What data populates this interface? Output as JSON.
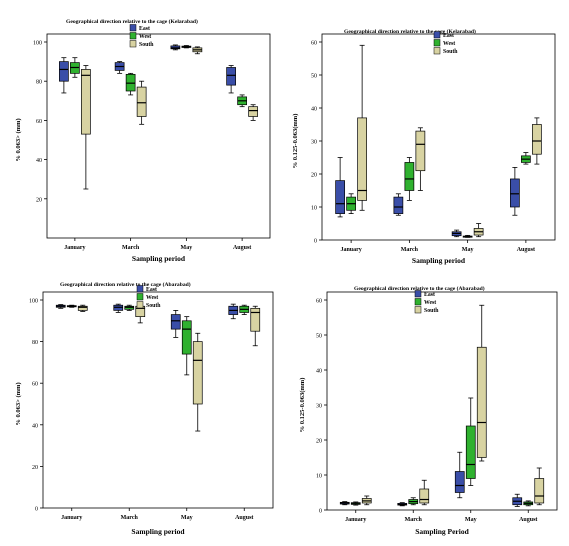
{
  "colors": {
    "East": "#3a4ea8",
    "West": "#2fb12f",
    "South": "#d8d3a2"
  },
  "chart_data": [
    {
      "type": "box",
      "title": "Geographical direction relative to the cage (Kelarabad)",
      "xlabel": "Sampling period",
      "ylabel": "% 0.063> (mm)",
      "categories": [
        "January",
        "March",
        "May",
        "August"
      ],
      "ylim": [
        0,
        100
      ],
      "yticks": [
        20,
        40,
        60,
        80,
        100
      ],
      "legend": [
        "East",
        "West",
        "South"
      ],
      "series": [
        {
          "name": "East",
          "boxes": [
            {
              "whislo": 74,
              "q1": 80,
              "med": 86,
              "q3": 90,
              "whishi": 92
            },
            {
              "whislo": 84,
              "q1": 85.5,
              "med": 87.5,
              "q3": 89.5,
              "whishi": 90
            },
            {
              "whislo": 96,
              "q1": 96.5,
              "med": 97,
              "q3": 98,
              "whishi": 98.5
            },
            {
              "whislo": 74,
              "q1": 78,
              "med": 83,
              "q3": 87,
              "whishi": 88
            }
          ]
        },
        {
          "name": "West",
          "boxes": [
            {
              "whislo": 82,
              "q1": 84,
              "med": 87,
              "q3": 89.5,
              "whishi": 92
            },
            {
              "whislo": 73,
              "q1": 75,
              "med": 79,
              "q3": 83.5,
              "whishi": 84
            },
            {
              "whislo": 97,
              "q1": 97.2,
              "med": 97.5,
              "q3": 97.9,
              "whishi": 98.2
            },
            {
              "whislo": 67,
              "q1": 68,
              "med": 70,
              "q3": 72,
              "whishi": 73
            }
          ]
        },
        {
          "name": "South",
          "boxes": [
            {
              "whislo": 25,
              "q1": 53,
              "med": 83,
              "q3": 86,
              "whishi": 88
            },
            {
              "whislo": 58,
              "q1": 62,
              "med": 69,
              "q3": 77,
              "whishi": 80
            },
            {
              "whislo": 94,
              "q1": 95,
              "med": 96,
              "q3": 97,
              "whishi": 97.5
            },
            {
              "whislo": 60,
              "q1": 62,
              "med": 65,
              "q3": 67,
              "whishi": 68
            }
          ]
        }
      ]
    },
    {
      "type": "box",
      "title": "Geographical direction relative to the cage (Kelarabad)",
      "xlabel": "Sampling period",
      "ylabel": "% 0.125-0.063(mm)",
      "categories": [
        "January",
        "March",
        "May",
        "August"
      ],
      "ylim": [
        0,
        60
      ],
      "yticks": [
        0,
        10,
        20,
        30,
        40,
        50,
        60
      ],
      "legend": [
        "East",
        "West",
        "South"
      ],
      "series": [
        {
          "name": "East",
          "boxes": [
            {
              "whislo": 7,
              "q1": 8,
              "med": 11,
              "q3": 18,
              "whishi": 25
            },
            {
              "whislo": 7.5,
              "q1": 8,
              "med": 10,
              "q3": 13,
              "whishi": 14
            },
            {
              "whislo": 1,
              "q1": 1.3,
              "med": 2,
              "q3": 2.5,
              "whishi": 3
            },
            {
              "whislo": 7.5,
              "q1": 10,
              "med": 14,
              "q3": 18.5,
              "whishi": 22
            }
          ]
        },
        {
          "name": "West",
          "boxes": [
            {
              "whislo": 8,
              "q1": 9,
              "med": 11,
              "q3": 13,
              "whishi": 14
            },
            {
              "whislo": 12,
              "q1": 15,
              "med": 18.5,
              "q3": 23.5,
              "whishi": 25
            },
            {
              "whislo": 0.8,
              "q1": 0.9,
              "med": 1,
              "q3": 1.2,
              "whishi": 1.4
            },
            {
              "whislo": 23,
              "q1": 23.5,
              "med": 24.5,
              "q3": 25.5,
              "whishi": 26.5
            }
          ]
        },
        {
          "name": "South",
          "boxes": [
            {
              "whislo": 9,
              "q1": 12,
              "med": 15,
              "q3": 37,
              "whishi": 59
            },
            {
              "whislo": 15,
              "q1": 21,
              "med": 29,
              "q3": 33,
              "whishi": 34
            },
            {
              "whislo": 1,
              "q1": 1.5,
              "med": 2.5,
              "q3": 3.5,
              "whishi": 5
            },
            {
              "whislo": 23,
              "q1": 26,
              "med": 30,
              "q3": 35,
              "whishi": 37
            }
          ]
        }
      ]
    },
    {
      "type": "box",
      "title": "Geographical direction relative to the cage (Abarabad)",
      "xlabel": "Sampling period",
      "ylabel": "% 0.063> (mm)",
      "categories": [
        "January",
        "March",
        "May",
        "August"
      ],
      "ylim": [
        0,
        100
      ],
      "yticks": [
        0,
        20,
        40,
        60,
        80,
        100
      ],
      "legend": [
        "East",
        "West",
        "South"
      ],
      "series": [
        {
          "name": "East",
          "boxes": [
            {
              "whislo": 96,
              "q1": 96.5,
              "med": 97,
              "q3": 97.5,
              "whishi": 97.8
            },
            {
              "whislo": 94,
              "q1": 95,
              "med": 96.5,
              "q3": 97.5,
              "whishi": 98
            },
            {
              "whislo": 82,
              "q1": 86,
              "med": 90,
              "q3": 93,
              "whishi": 95
            },
            {
              "whislo": 91,
              "q1": 93,
              "med": 95,
              "q3": 97,
              "whishi": 98
            }
          ]
        },
        {
          "name": "West",
          "boxes": [
            {
              "whislo": 96.5,
              "q1": 96.8,
              "med": 97,
              "q3": 97.3,
              "whishi": 97.5
            },
            {
              "whislo": 95,
              "q1": 95.5,
              "med": 96.5,
              "q3": 97,
              "whishi": 97.5
            },
            {
              "whislo": 64,
              "q1": 74,
              "med": 86,
              "q3": 90,
              "whishi": 92
            },
            {
              "whislo": 93,
              "q1": 94,
              "med": 95.5,
              "q3": 97,
              "whishi": 97.5
            }
          ]
        },
        {
          "name": "South",
          "boxes": [
            {
              "whislo": 94.5,
              "q1": 95,
              "med": 96.5,
              "q3": 97,
              "whishi": 97.5
            },
            {
              "whislo": 89,
              "q1": 92,
              "med": 96,
              "q3": 97,
              "whishi": 98
            },
            {
              "whislo": 37,
              "q1": 50,
              "med": 71,
              "q3": 80,
              "whishi": 84
            },
            {
              "whislo": 78,
              "q1": 85,
              "med": 94,
              "q3": 96,
              "whishi": 97
            }
          ]
        }
      ]
    },
    {
      "type": "box",
      "title": "Geographical direction relative to the cage (Abarabad)",
      "xlabel": "Sampling Period",
      "ylabel": "% 0.125-0.063(mm)",
      "categories": [
        "January",
        "March",
        "May",
        "August"
      ],
      "ylim": [
        0,
        60
      ],
      "yticks": [
        0,
        10,
        20,
        30,
        40,
        50,
        60
      ],
      "legend": [
        "East",
        "West",
        "South"
      ],
      "series": [
        {
          "name": "East",
          "boxes": [
            {
              "whislo": 1.5,
              "q1": 1.7,
              "med": 2,
              "q3": 2.2,
              "whishi": 2.4
            },
            {
              "whislo": 1.2,
              "q1": 1.4,
              "med": 1.6,
              "q3": 1.9,
              "whishi": 2.1
            },
            {
              "whislo": 3.5,
              "q1": 5,
              "med": 7,
              "q3": 11,
              "whishi": 16.5
            },
            {
              "whislo": 1,
              "q1": 1.5,
              "med": 2.5,
              "q3": 3.5,
              "whishi": 4.5
            }
          ]
        },
        {
          "name": "West",
          "boxes": [
            {
              "whislo": 1.4,
              "q1": 1.6,
              "med": 1.8,
              "q3": 2.1,
              "whishi": 2.3
            },
            {
              "whislo": 1.5,
              "q1": 1.8,
              "med": 2.4,
              "q3": 3,
              "whishi": 3.5
            },
            {
              "whislo": 7,
              "q1": 9,
              "med": 13,
              "q3": 24,
              "whishi": 32
            },
            {
              "whislo": 1.2,
              "q1": 1.5,
              "med": 1.9,
              "q3": 2.3,
              "whishi": 2.6
            }
          ]
        },
        {
          "name": "South",
          "boxes": [
            {
              "whislo": 1.5,
              "q1": 2,
              "med": 2.6,
              "q3": 3.3,
              "whishi": 4
            },
            {
              "whislo": 1.5,
              "q1": 2,
              "med": 3,
              "q3": 6,
              "whishi": 8.5
            },
            {
              "whislo": 14,
              "q1": 15,
              "med": 25,
              "q3": 46.5,
              "whishi": 58.5
            },
            {
              "whislo": 1.5,
              "q1": 2,
              "med": 4,
              "q3": 9,
              "whishi": 12
            }
          ]
        }
      ]
    }
  ]
}
